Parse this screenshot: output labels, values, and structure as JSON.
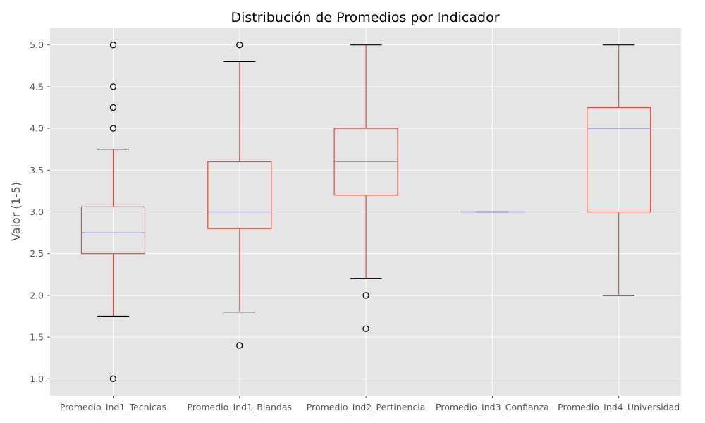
{
  "chart_data": {
    "type": "boxplot",
    "title": "Distribución de Promedios por Indicador",
    "xlabel": "",
    "ylabel": "Valor (1-5)",
    "ylim": [
      0.8,
      5.2
    ],
    "yticks": [
      1.0,
      1.5,
      2.0,
      2.5,
      3.0,
      3.5,
      4.0,
      4.5,
      5.0
    ],
    "ytick_labels": [
      "1.0",
      "1.5",
      "2.0",
      "2.5",
      "3.0",
      "3.5",
      "4.0",
      "4.5",
      "5.0"
    ],
    "grid": true,
    "categories": [
      "Promedio_Ind1_Tecnicas",
      "Promedio_Ind1_Blandas",
      "Promedio_Ind2_Pertinencia",
      "Promedio_Ind3_Confianza",
      "Promedio_Ind4_Universidad"
    ],
    "boxes": [
      {
        "whisker_low": 1.75,
        "q1": 2.5,
        "median": 2.75,
        "q3": 3.06,
        "whisker_high": 3.75,
        "outliers": [
          1.0,
          4.0,
          4.25,
          4.5,
          5.0
        ]
      },
      {
        "whisker_low": 1.8,
        "q1": 2.8,
        "median": 3.0,
        "q3": 3.6,
        "whisker_high": 4.8,
        "outliers": [
          1.4,
          5.0
        ]
      },
      {
        "whisker_low": 2.2,
        "q1": 3.2,
        "median": 3.6,
        "q3": 4.0,
        "whisker_high": 5.0,
        "outliers": [
          1.6,
          2.0
        ]
      },
      {
        "whisker_low": 3.0,
        "q1": 3.0,
        "median": 3.0,
        "q3": 3.0,
        "whisker_high": 3.0,
        "outliers": []
      },
      {
        "whisker_low": 2.0,
        "q1": 3.0,
        "median": 4.0,
        "q3": 4.25,
        "whisker_high": 5.0,
        "outliers": []
      }
    ],
    "colors": {
      "plot_background": "#e5e5e5",
      "grid": "#ffffff",
      "box": "#e24a33",
      "median": "#8eba42",
      "median_line": "#988ed5",
      "cap": "#000000",
      "outlier": "#000000"
    }
  }
}
